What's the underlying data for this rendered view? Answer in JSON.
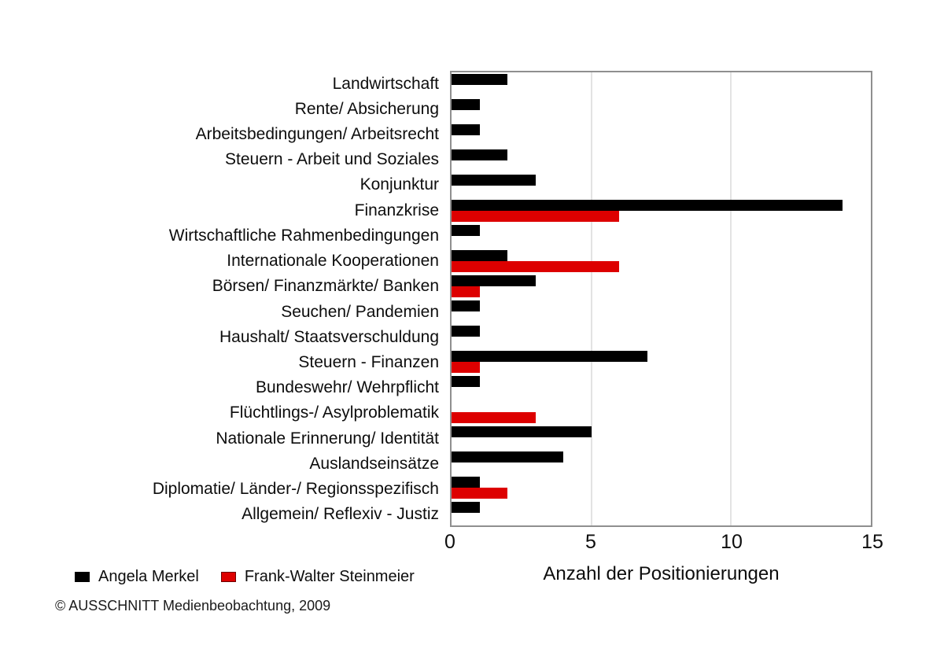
{
  "chart_data": {
    "type": "bar",
    "orientation": "horizontal",
    "title": "",
    "xlabel": "Anzahl der Positionierungen",
    "ylabel": "",
    "xlim": [
      0,
      15
    ],
    "xticks": [
      0,
      5,
      10,
      15
    ],
    "grid": "vertical light gray lines at 5 and 10",
    "legend_position": "bottom-left",
    "categories": [
      "Landwirtschaft",
      "Rente/ Absicherung",
      "Arbeitsbedingungen/ Arbeitsrecht",
      "Steuern - Arbeit und Soziales",
      "Konjunktur",
      "Finanzkrise",
      "Wirtschaftliche Rahmenbedingungen",
      "Internationale Kooperationen",
      "Börsen/ Finanzmärkte/ Banken",
      "Seuchen/ Pandemien",
      "Haushalt/ Staatsverschuldung",
      "Steuern - Finanzen",
      "Bundeswehr/ Wehrpflicht",
      "Flüchtlings-/ Asylproblematik",
      "Nationale Erinnerung/ Identität",
      "Auslandseinsätze",
      "Diplomatie/ Länder-/ Regionsspezifisch",
      "Allgemein/ Reflexiv - Justiz"
    ],
    "series": [
      {
        "name": "Angela Merkel",
        "color": "#000000",
        "values": [
          2,
          1,
          1,
          2,
          3,
          14,
          1,
          2,
          3,
          1,
          1,
          7,
          1,
          0,
          5,
          4,
          1,
          1
        ]
      },
      {
        "name": "Frank-Walter Steinmeier",
        "color": "#dd0000",
        "values": [
          0,
          0,
          0,
          0,
          0,
          6,
          0,
          6,
          1,
          0,
          0,
          1,
          0,
          3,
          0,
          0,
          2,
          0
        ]
      }
    ]
  },
  "legend": {
    "items": [
      {
        "label": "Angela Merkel",
        "color": "#000000"
      },
      {
        "label": "Frank-Walter Steinmeier",
        "color": "#dd0000"
      }
    ]
  },
  "footer": {
    "copyright": "© AUSSCHNITT Medienbeobachtung, 2009"
  }
}
